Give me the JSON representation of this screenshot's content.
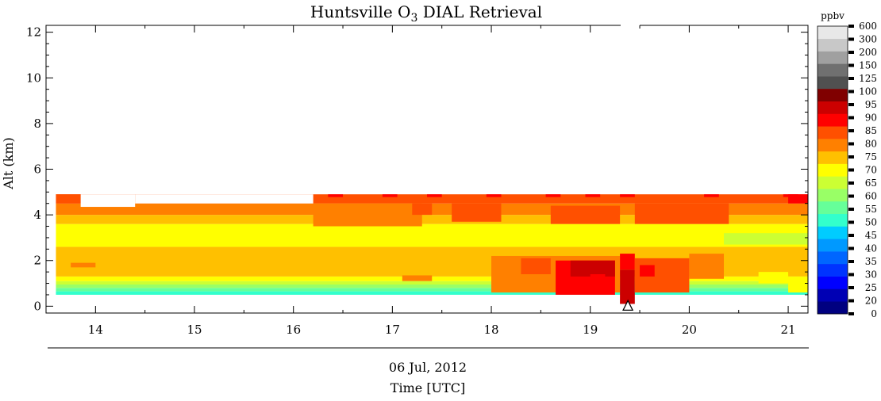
{
  "chart_data": {
    "type": "heatmap",
    "title": "Huntsville O",
    "title_sub": "3",
    "title_rest": " DIAL Retrieval",
    "ylabel": "Alt (km)",
    "xlabel": "Time [UTC]",
    "date_label": "06 Jul, 2012",
    "units": "ppbv",
    "xlim": [
      13.5,
      21.2
    ],
    "ylim": [
      -0.3,
      12.3
    ],
    "x_ticks": [
      14,
      15,
      16,
      17,
      18,
      19,
      20,
      21
    ],
    "y_ticks": [
      0,
      2,
      4,
      6,
      8,
      10,
      12
    ],
    "grid": false,
    "colorbar": {
      "levels": [
        "0",
        "20",
        "25",
        "30",
        "35",
        "40",
        "45",
        "50",
        "55",
        "60",
        "65",
        "70",
        "75",
        "80",
        "85",
        "90",
        "95",
        "100",
        "125",
        "150",
        "200",
        "300",
        "600"
      ],
      "colors": [
        "#000080",
        "#0000b4",
        "#0000ff",
        "#0033ff",
        "#0066ff",
        "#0099ff",
        "#00ccff",
        "#33ffcc",
        "#66ff99",
        "#99ff66",
        "#ccff33",
        "#ffff00",
        "#ffc000",
        "#ff8000",
        "#ff5000",
        "#ff0000",
        "#cc0000",
        "#800000",
        "#505050",
        "#707070",
        "#a0a0a0",
        "#c8c8c8",
        "#e8e8e8"
      ]
    },
    "profile_bands": [
      {
        "y0": 0.5,
        "y1": 0.65,
        "value": 50
      },
      {
        "y0": 0.65,
        "y1": 0.8,
        "value": 55
      },
      {
        "y0": 0.8,
        "y1": 0.95,
        "value": 60
      },
      {
        "y0": 0.95,
        "y1": 1.1,
        "value": 65
      },
      {
        "y0": 1.1,
        "y1": 1.3,
        "value": 70
      },
      {
        "y0": 1.3,
        "y1": 2.6,
        "value": 75
      },
      {
        "y0": 2.6,
        "y1": 3.6,
        "value": 70
      },
      {
        "y0": 3.6,
        "y1": 4.0,
        "value": 75
      },
      {
        "y0": 4.0,
        "y1": 4.5,
        "value": 80
      },
      {
        "y0": 4.5,
        "y1": 4.9,
        "value": 85
      }
    ],
    "patches": [
      {
        "x0": 13.6,
        "x1": 13.85,
        "y0": 4.5,
        "y1": 4.9,
        "value": 85
      },
      {
        "x0": 13.85,
        "x1": 14.4,
        "y0": 4.35,
        "y1": 4.9,
        "value": null
      },
      {
        "x0": 14.4,
        "x1": 16.2,
        "y0": 4.5,
        "y1": 4.9,
        "value": null
      },
      {
        "x0": 13.75,
        "x1": 14.0,
        "y0": 1.7,
        "y1": 1.9,
        "value": 80
      },
      {
        "x0": 16.2,
        "x1": 17.3,
        "y0": 3.5,
        "y1": 4.5,
        "value": 80
      },
      {
        "x0": 17.1,
        "x1": 17.4,
        "y0": 1.1,
        "y1": 1.35,
        "value": 80
      },
      {
        "x0": 17.2,
        "x1": 17.4,
        "y0": 4.0,
        "y1": 4.5,
        "value": 85
      },
      {
        "x0": 17.6,
        "x1": 18.1,
        "y0": 3.7,
        "y1": 4.5,
        "value": 85
      },
      {
        "x0": 18.0,
        "x1": 19.3,
        "y0": 0.6,
        "y1": 2.2,
        "value": 80
      },
      {
        "x0": 18.6,
        "x1": 19.3,
        "y0": 3.6,
        "y1": 4.4,
        "value": 85
      },
      {
        "x0": 18.3,
        "x1": 18.6,
        "y0": 1.4,
        "y1": 2.1,
        "value": 85
      },
      {
        "x0": 18.65,
        "x1": 19.25,
        "y0": 0.5,
        "y1": 2.0,
        "value": 90
      },
      {
        "x0": 18.8,
        "x1": 19.25,
        "y0": 1.3,
        "y1": 2.0,
        "value": 95
      },
      {
        "x0": 19.0,
        "x1": 19.15,
        "y0": 0.9,
        "y1": 1.4,
        "value": 90
      },
      {
        "x0": 19.3,
        "x1": 19.45,
        "y0": 0.1,
        "y1": 1.6,
        "value": 95
      },
      {
        "x0": 19.3,
        "x1": 19.45,
        "y0": 1.6,
        "y1": 2.3,
        "value": 90
      },
      {
        "x0": 19.45,
        "x1": 20.0,
        "y0": 0.6,
        "y1": 2.1,
        "value": 85
      },
      {
        "x0": 19.5,
        "x1": 19.65,
        "y0": 1.3,
        "y1": 1.8,
        "value": 90
      },
      {
        "x0": 19.45,
        "x1": 20.4,
        "y0": 3.6,
        "y1": 4.5,
        "value": 85
      },
      {
        "x0": 20.0,
        "x1": 20.35,
        "y0": 1.2,
        "y1": 2.3,
        "value": 80
      },
      {
        "x0": 20.35,
        "x1": 21.2,
        "y0": 2.7,
        "y1": 3.2,
        "value": 65
      },
      {
        "x0": 20.7,
        "x1": 21.0,
        "y0": 1.0,
        "y1": 1.5,
        "value": 70
      },
      {
        "x0": 21.0,
        "x1": 21.2,
        "y0": 0.6,
        "y1": 1.3,
        "value": 70
      },
      {
        "x0": 21.0,
        "x1": 21.2,
        "y0": 4.5,
        "y1": 4.9,
        "value": 90
      }
    ],
    "red_cap_samples": [
      16.35,
      16.9,
      17.35,
      17.95,
      18.55,
      18.95,
      19.3,
      20.15,
      20.95
    ],
    "marker": {
      "x": 19.38,
      "y": 0.0,
      "symbol": "triangle"
    }
  }
}
